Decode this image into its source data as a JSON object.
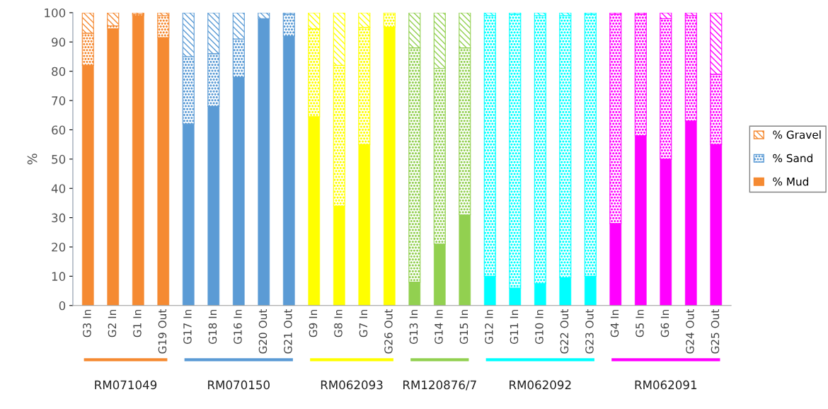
{
  "chart_data": {
    "type": "bar",
    "stacked": true,
    "ylabel": "%",
    "ylim": [
      0,
      100
    ],
    "yticks": [
      0,
      10,
      20,
      30,
      40,
      50,
      60,
      70,
      80,
      90,
      100
    ],
    "grid": false,
    "legend": "right",
    "categories": [
      "G3 In",
      "G2 In",
      "G1 In",
      "G19 Out",
      "G17 In",
      "G18 In",
      "G16 In",
      "G20 Out",
      "G21 Out",
      "G9 In",
      "G8 In",
      "G7 In",
      "G26 Out",
      "G13 In",
      "G14 In",
      "G15 In",
      "G12 In",
      "G11 In",
      "G10 In",
      "G22 Out",
      "G23 Out",
      "G4 In",
      "G5 In",
      "G6 In",
      "G24 Out",
      "G25 Out"
    ],
    "series": [
      {
        "name": "% Mud",
        "color": "#f58a32",
        "colors": [
          "#f58a32",
          "#f58a32",
          "#f58a32",
          "#f58a32",
          "#5b9bd5",
          "#5b9bd5",
          "#5b9bd5",
          "#5b9bd5",
          "#5b9bd5",
          "#ffff00",
          "#ffff00",
          "#ffff00",
          "#ffff00",
          "#92d050",
          "#92d050",
          "#92d050",
          "#00ffff",
          "#00ffff",
          "#00ffff",
          "#00ffff",
          "#00ffff",
          "#ff00ff",
          "#ff00ff",
          "#ff00ff",
          "#ff00ff",
          "#ff00ff"
        ],
        "values": [
          82,
          94.5,
          99,
          91.5,
          62,
          68,
          78,
          98,
          92,
          64.5,
          34,
          55,
          95,
          8,
          21,
          31,
          10,
          6,
          7.5,
          9.5,
          10,
          28,
          58,
          50,
          63,
          55
        ]
      },
      {
        "name": "% Sand",
        "color": "#5b9bd5",
        "colors": [
          "#f58a32",
          "#f58a32",
          "#f58a32",
          "#f58a32",
          "#5b9bd5",
          "#5b9bd5",
          "#5b9bd5",
          "#5b9bd5",
          "#5b9bd5",
          "#ffff00",
          "#ffff00",
          "#ffff00",
          "#ffff00",
          "#92d050",
          "#92d050",
          "#92d050",
          "#00ffff",
          "#00ffff",
          "#00ffff",
          "#00ffff",
          "#00ffff",
          "#ff00ff",
          "#ff00ff",
          "#ff00ff",
          "#ff00ff",
          "#ff00ff"
        ],
        "values": [
          11,
          1,
          0.5,
          7.5,
          23,
          18,
          13,
          0,
          7.5,
          30,
          48,
          40,
          5,
          80,
          60,
          57,
          89,
          93.5,
          91.5,
          89.5,
          89.5,
          71.5,
          41.5,
          48,
          36,
          24
        ]
      },
      {
        "name": "% Gravel",
        "color": "#f58a32",
        "colors": [
          "#f58a32",
          "#f58a32",
          "#f58a32",
          "#f58a32",
          "#5b9bd5",
          "#5b9bd5",
          "#5b9bd5",
          "#5b9bd5",
          "#5b9bd5",
          "#ffff00",
          "#ffff00",
          "#ffff00",
          "#ffff00",
          "#92d050",
          "#92d050",
          "#92d050",
          "#00ffff",
          "#00ffff",
          "#00ffff",
          "#00ffff",
          "#00ffff",
          "#ff00ff",
          "#ff00ff",
          "#ff00ff",
          "#ff00ff",
          "#ff00ff"
        ],
        "values": [
          7,
          4.5,
          0.5,
          1,
          15,
          14,
          9,
          2,
          0.5,
          5.5,
          18,
          5,
          0,
          12,
          19,
          12,
          1,
          0.5,
          1,
          1,
          0.5,
          0.5,
          0.5,
          2,
          1,
          21
        ]
      }
    ],
    "annotations": [
      "RM071049",
      "RM070150",
      "RM062093",
      "RM120876/7",
      "RM062092",
      "RM062091"
    ]
  }
}
